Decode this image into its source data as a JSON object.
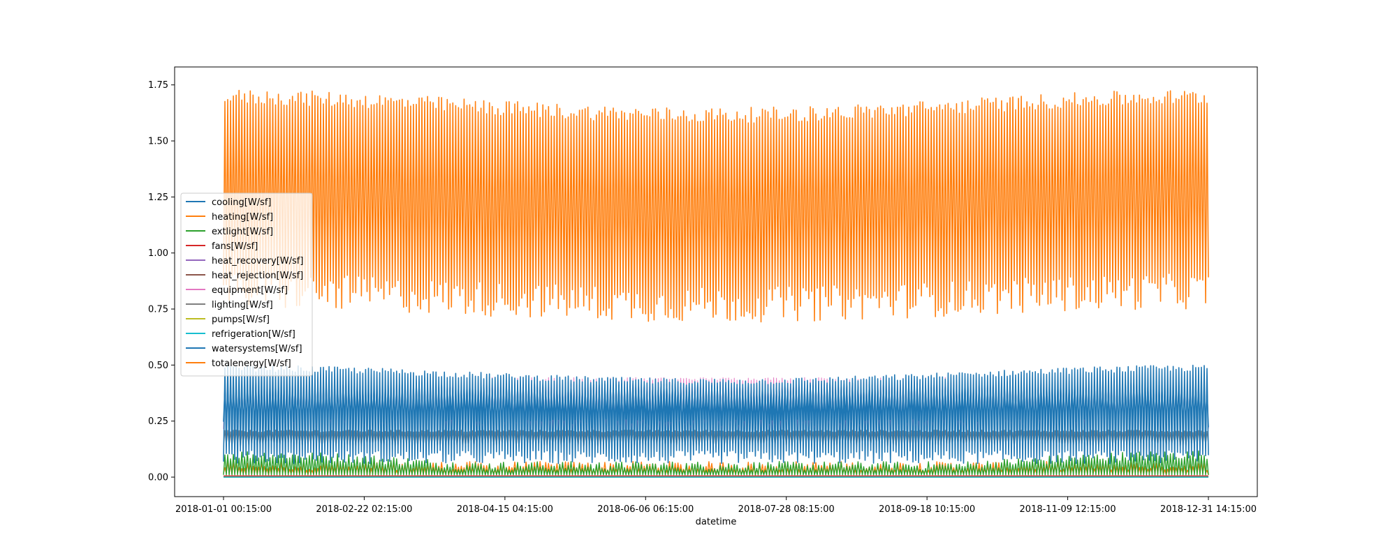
{
  "chart_data": {
    "type": "line",
    "title": "",
    "xlabel": "datetime",
    "ylabel": "",
    "x_tick_labels": [
      "2018-01-01 00:15:00",
      "2018-02-22 02:15:00",
      "2018-04-15 04:15:00",
      "2018-06-06 06:15:00",
      "2018-07-28 08:15:00",
      "2018-09-18 10:15:00",
      "2018-11-09 12:15:00",
      "2018-12-31 14:15:00"
    ],
    "x_range": [
      "2018-01-01 00:15:00",
      "2018-12-31 14:15:00"
    ],
    "y_ticks": [
      0.0,
      0.25,
      0.5,
      0.75,
      1.0,
      1.25,
      1.5,
      1.75
    ],
    "y_tick_labels": [
      "0.00",
      "0.25",
      "0.50",
      "0.75",
      "1.00",
      "1.25",
      "1.50",
      "1.75"
    ],
    "ylim": [
      -0.087,
      1.83
    ],
    "grid": false,
    "legend_position": "center-left",
    "series": [
      {
        "name": "cooling[W/sf]",
        "color": "#1f77b4",
        "approx_min": 0.0,
        "approx_max": 0.0
      },
      {
        "name": "heating[W/sf]",
        "color": "#ff7f0e",
        "approx_min": 0.0,
        "approx_max": 0.07
      },
      {
        "name": "extlight[W/sf]",
        "color": "#2ca02c",
        "approx_min": 0.0,
        "approx_max": 0.12
      },
      {
        "name": "fans[W/sf]",
        "color": "#d62728",
        "approx_min": 0.0,
        "approx_max": 0.01
      },
      {
        "name": "heat_recovery[W/sf]",
        "color": "#9467bd",
        "approx_min": 0.0,
        "approx_max": 0.0
      },
      {
        "name": "heat_rejection[W/sf]",
        "color": "#8c564b",
        "approx_min": 0.0,
        "approx_max": 0.0
      },
      {
        "name": "equipment[W/sf]",
        "color": "#e377c2",
        "approx_min": 0.21,
        "approx_max": 0.45
      },
      {
        "name": "lighting[W/sf]",
        "color": "#7f7f7f",
        "approx_min": 0.12,
        "approx_max": 0.21
      },
      {
        "name": "pumps[W/sf]",
        "color": "#bcbd22",
        "approx_min": 0.0,
        "approx_max": 0.0
      },
      {
        "name": "refrigeration[W/sf]",
        "color": "#17becf",
        "approx_min": 0.0,
        "approx_max": 0.0
      },
      {
        "name": "watersystems[W/sf]",
        "color": "#1f77b4",
        "approx_min": 0.05,
        "approx_max": 0.49
      },
      {
        "name": "totalenergy[W/sf]",
        "color": "#ff7f0e",
        "approx_min": 0.72,
        "approx_max": 1.74
      }
    ]
  }
}
